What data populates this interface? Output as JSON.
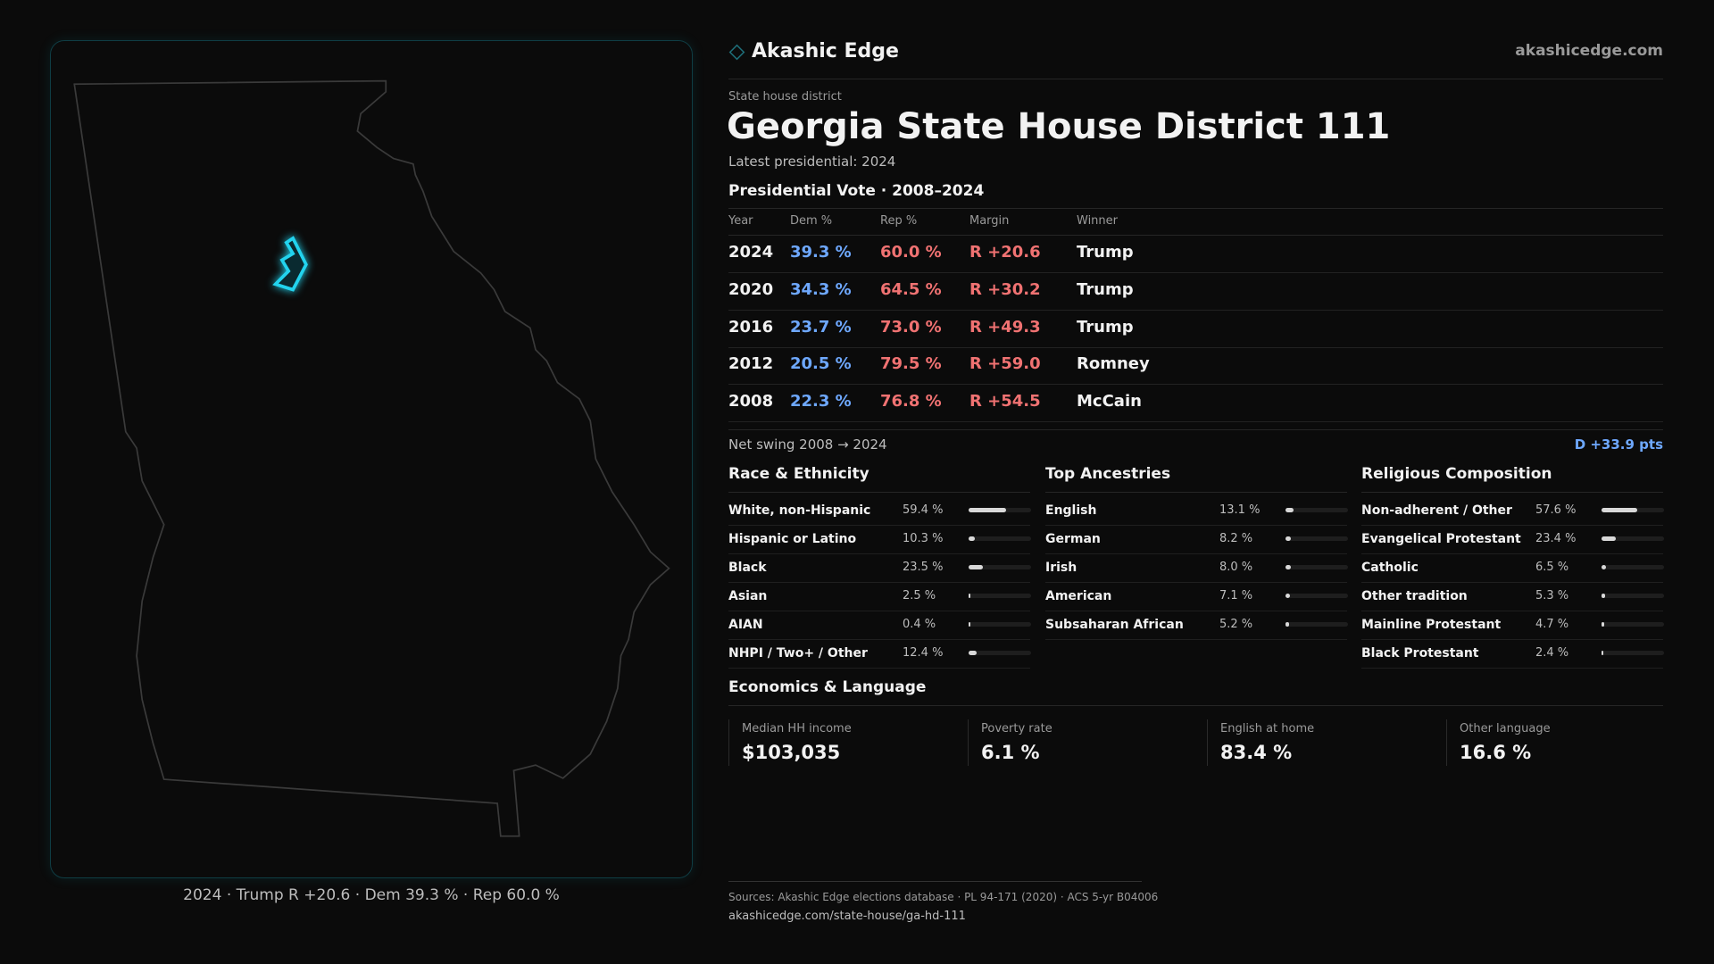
{
  "header": {
    "brand": "Akashic Edge",
    "site": "akashicedge.com"
  },
  "district": {
    "kind": "State house district",
    "title": "Georgia State House District 111",
    "latest": "Latest presidential: 2024"
  },
  "map": {
    "caption": "2024 · Trump R +20.6 · Dem 39.3 % · Rep 60.0 %"
  },
  "presidential": {
    "title": "Presidential Vote · 2008–2024",
    "columns": [
      "Year",
      "Dem %",
      "Rep %",
      "Margin",
      "Winner"
    ],
    "rows": [
      [
        "2024",
        "39.3 %",
        "60.0 %",
        "R +20.6",
        "Trump"
      ],
      [
        "2020",
        "34.3 %",
        "64.5 %",
        "R +30.2",
        "Trump"
      ],
      [
        "2016",
        "23.7 %",
        "73.0 %",
        "R +49.3",
        "Trump"
      ],
      [
        "2012",
        "20.5 %",
        "79.5 %",
        "R +59.0",
        "Romney"
      ],
      [
        "2008",
        "22.3 %",
        "76.8 %",
        "R +54.5",
        "McCain"
      ]
    ]
  },
  "swing": {
    "label": "Net swing 2008 → 2024",
    "value": "D +33.9 pts"
  },
  "race": {
    "title": "Race & Ethnicity",
    "categories": [
      "White, non-Hispanic",
      "Hispanic or Latino",
      "Black",
      "Asian",
      "AIAN",
      "NHPI / Two+ / Other"
    ],
    "values": [
      59.4,
      10.3,
      23.5,
      2.5,
      0.4,
      12.4
    ],
    "value_labels": [
      "59.4 %",
      "10.3 %",
      "23.5 %",
      "2.5 %",
      "0.4 %",
      "12.4 %"
    ]
  },
  "ancestry": {
    "title": "Top Ancestries",
    "categories": [
      "English",
      "German",
      "Irish",
      "American",
      "Subsaharan African"
    ],
    "values": [
      13.1,
      8.2,
      8.0,
      7.1,
      5.2
    ],
    "value_labels": [
      "13.1 %",
      "8.2 %",
      "8.0 %",
      "7.1 %",
      "5.2 %"
    ]
  },
  "religion": {
    "title": "Religious Composition",
    "categories": [
      "Non-adherent / Other",
      "Evangelical Protestant",
      "Catholic",
      "Other tradition",
      "Mainline Protestant",
      "Black Protestant"
    ],
    "values": [
      57.6,
      23.4,
      6.5,
      5.3,
      4.7,
      2.4
    ],
    "value_labels": [
      "57.6 %",
      "23.4 %",
      "6.5 %",
      "5.3 %",
      "4.7 %",
      "2.4 %"
    ]
  },
  "economics": {
    "title": "Economics & Language",
    "stats": [
      {
        "label": "Median HH income",
        "value": "$103,035"
      },
      {
        "label": "Poverty rate",
        "value": "6.1 %"
      },
      {
        "label": "English at home",
        "value": "83.4 %"
      },
      {
        "label": "Other language",
        "value": "16.6 %"
      }
    ]
  },
  "footer": {
    "sources": "Sources: Akashic Edge elections database · PL 94-171 (2020) · ACS 5-yr B04006",
    "url": "akashicedge.com/state-house/ga-hd-111"
  }
}
